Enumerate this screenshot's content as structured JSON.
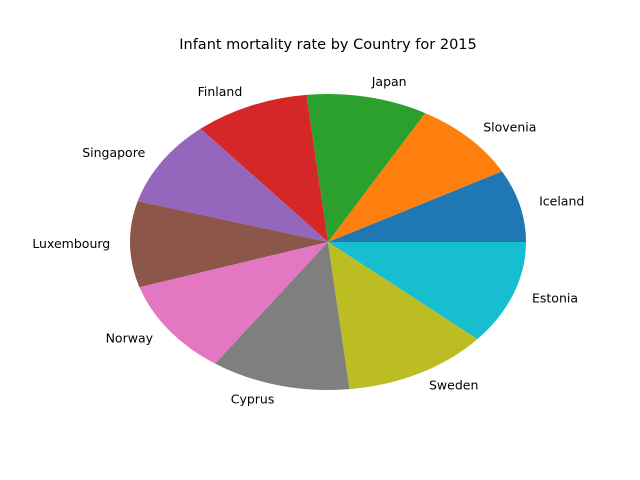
{
  "chart_data": {
    "type": "pie",
    "title": "Infant mortality rate by Country for 2015",
    "categories": [
      "Iceland",
      "Slovenia",
      "Japan",
      "Finland",
      "Singapore",
      "Luxembourg",
      "Norway",
      "Cyprus",
      "Sweden",
      "Estonia"
    ],
    "values": [
      1.6,
      1.8,
      2.0,
      1.9,
      1.9,
      1.9,
      2.1,
      2.3,
      2.4,
      2.3
    ],
    "colors": [
      "#1f77b4",
      "#ff7f0e",
      "#2ca02c",
      "#d62728",
      "#9467bd",
      "#8c564b",
      "#e377c2",
      "#7f7f7f",
      "#bcbd22",
      "#17becf"
    ],
    "start_angle_deg": 0,
    "direction": "counterclockwise",
    "legend": "none"
  }
}
